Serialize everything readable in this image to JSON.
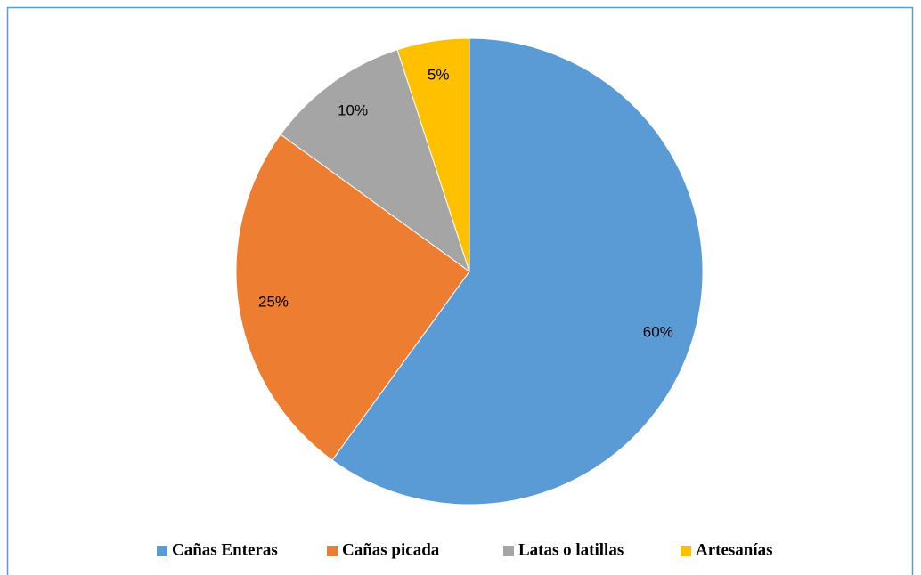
{
  "chart_data": {
    "type": "pie",
    "categories": [
      "Cañas Enteras",
      "Cañas picada",
      "Latas o latillas",
      "Artesanías"
    ],
    "values": [
      60,
      25,
      10,
      5
    ],
    "value_labels": [
      "60%",
      "25%",
      "10%",
      "5%"
    ],
    "colors": [
      "#5b9bd5",
      "#ed7d31",
      "#a5a5a5",
      "#ffc000"
    ],
    "legend": "bottom"
  }
}
